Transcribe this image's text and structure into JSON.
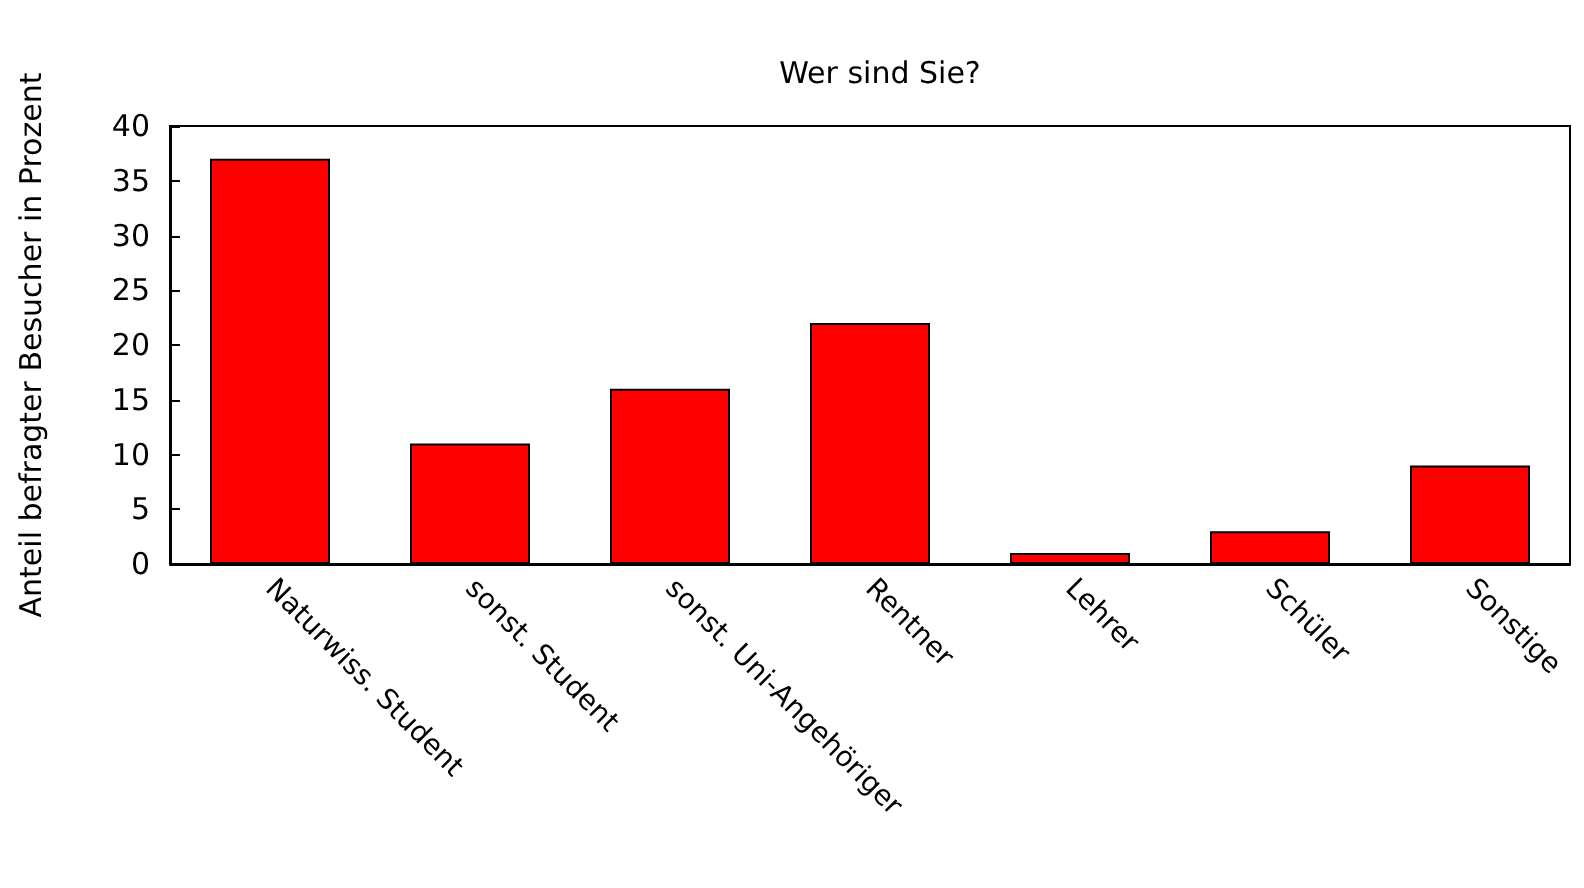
{
  "chart_data": {
    "type": "bar",
    "title": "Wer sind Sie?",
    "ylabel": "Anteil befragter Besucher in Prozent",
    "categories": [
      "Naturwiss. Student",
      "sonst. Student",
      "sonst. Uni-Angehöriger",
      "Rentner",
      "Lehrer",
      "Schüler",
      "Sonstige"
    ],
    "values": [
      37,
      11,
      16,
      22,
      1,
      3,
      9
    ],
    "color": "#ff0000",
    "ylim": [
      0,
      40
    ],
    "yticks": [
      0,
      5,
      10,
      15,
      20,
      25,
      30,
      35,
      40
    ],
    "grid": false
  }
}
